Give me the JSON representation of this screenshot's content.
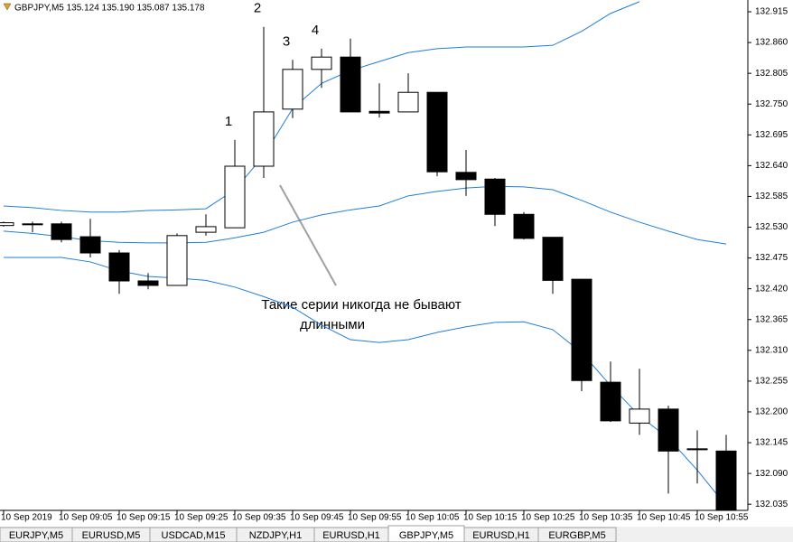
{
  "chart_data": {
    "type": "candlestick",
    "title": "GBPJPY,M5  135.124 135.190 135.087 135.178",
    "categories": [
      "10 Sep 2019",
      null,
      "10 Sep 09:05",
      null,
      "10 Sep 09:15",
      null,
      "10 Sep 09:25",
      null,
      "10 Sep 09:35",
      null,
      "10 Sep 09:45",
      null,
      "10 Sep 09:55",
      null,
      "10 Sep 10:05",
      null,
      "10 Sep 10:15",
      null,
      "10 Sep 10:25",
      null,
      "10 Sep 10:35",
      null,
      "10 Sep 10:45",
      null,
      "10 Sep 10:55",
      null
    ],
    "open": [
      132.533,
      132.536,
      132.536,
      132.513,
      132.484,
      132.434,
      132.426,
      132.521,
      132.529,
      132.639,
      132.741,
      132.812,
      132.834,
      132.737,
      132.736,
      132.771,
      132.628,
      132.616,
      132.553,
      132.512,
      132.437,
      132.253,
      132.18,
      132.205,
      132.134,
      132.13
    ],
    "high": [
      132.54,
      132.54,
      132.54,
      132.545,
      132.489,
      132.448,
      132.519,
      132.553,
      132.686,
      132.888,
      132.829,
      132.849,
      132.867,
      132.787,
      132.805,
      132.771,
      132.668,
      132.618,
      132.557,
      132.512,
      132.437,
      132.29,
      132.277,
      132.211,
      132.167,
      132.159
    ],
    "low": [
      132.531,
      132.521,
      132.503,
      132.476,
      132.411,
      132.419,
      132.426,
      132.515,
      132.529,
      132.618,
      132.725,
      132.779,
      132.736,
      132.726,
      132.736,
      132.621,
      132.586,
      132.532,
      132.508,
      132.411,
      132.237,
      132.182,
      132.159,
      132.054,
      132.072,
      132.024
    ],
    "close": [
      132.538,
      132.536,
      132.508,
      132.484,
      132.434,
      132.426,
      132.515,
      132.531,
      132.639,
      132.736,
      132.812,
      132.834,
      132.736,
      132.734,
      132.771,
      132.629,
      132.615,
      132.553,
      132.51,
      132.435,
      132.256,
      132.184,
      132.205,
      132.13,
      132.134,
      132.024
    ],
    "up_color": "#ffffff",
    "down_color": "#000000",
    "series": [
      {
        "color": "#1e7fd9",
        "values": [
          132.568,
          132.565,
          132.56,
          132.557,
          132.557,
          132.56,
          132.561,
          132.563,
          132.597,
          132.658,
          132.742,
          132.787,
          132.81,
          132.826,
          132.842,
          132.849,
          132.852,
          132.852,
          132.852,
          132.855,
          132.88,
          132.912,
          132.933,
          null,
          null,
          null
        ]
      },
      {
        "color": "#1e7fd9",
        "values": [
          132.523,
          132.519,
          132.513,
          132.506,
          132.503,
          132.502,
          132.502,
          132.503,
          132.511,
          132.521,
          132.539,
          132.552,
          132.561,
          132.568,
          132.586,
          132.594,
          132.6,
          132.603,
          132.602,
          132.597,
          132.578,
          132.557,
          132.539,
          132.523,
          132.508,
          132.5
        ]
      },
      {
        "color": "#1e7fd9",
        "values": [
          132.476,
          132.476,
          132.476,
          132.468,
          132.452,
          132.442,
          132.439,
          132.435,
          132.423,
          132.406,
          132.387,
          132.355,
          132.329,
          132.324,
          132.329,
          132.342,
          132.352,
          132.36,
          132.361,
          132.347,
          132.306,
          132.247,
          132.193,
          132.153,
          132.096,
          132.032
        ]
      }
    ],
    "ylim": [
      132.024,
      132.936
    ],
    "yticks": [
      132.915,
      {
        "value": 132.86,
        "label": "132.860"
      },
      132.805,
      {
        "value": 132.75,
        "label": "132.750"
      },
      132.695,
      {
        "value": 132.64,
        "label": "132.640"
      },
      132.585,
      {
        "value": 132.53,
        "label": "132.530"
      },
      132.475,
      {
        "value": 132.42,
        "label": "132.420"
      },
      132.365,
      {
        "value": 132.31,
        "label": "132.310"
      },
      132.255,
      {
        "value": 132.2,
        "label": "132.200"
      },
      132.145,
      {
        "value": 132.09,
        "label": "132.090"
      },
      132.035
    ],
    "annotations": [
      "1",
      "2",
      "3",
      "4"
    ],
    "note": [
      "Такие серии никогда не бывают",
      "длинными"
    ]
  },
  "tabs": [
    "EURJPY,M5",
    "EURUSD,M5",
    "USDCAD,M15",
    "NZDJPY,H1",
    "EURUSD,H1",
    "GBPJPY,M5",
    "EURUSD,H1",
    "EURGBP,M5"
  ]
}
